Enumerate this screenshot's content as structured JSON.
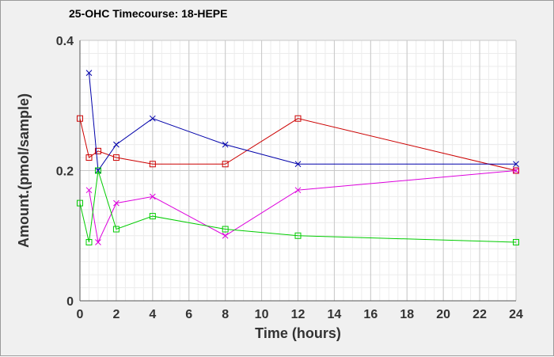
{
  "chart_data": {
    "type": "line",
    "title": "25-OHC Timecourse: 18-HEPE",
    "xlabel": "Time (hours)",
    "ylabel": "Amount.(pmol/sample)",
    "xlim": [
      0,
      24
    ],
    "ylim": [
      0,
      0.4
    ],
    "x_ticks": [
      "0",
      "2",
      "4",
      "6",
      "8",
      "10",
      "12",
      "14",
      "16",
      "18",
      "20",
      "22",
      "24"
    ],
    "y_ticks": [
      "0",
      "0.2",
      "0.4"
    ],
    "grid": true,
    "legend": "none",
    "series": [
      {
        "color": "#cc0000",
        "marker": "square",
        "points": [
          [
            0,
            0.28
          ],
          [
            0.5,
            0.22
          ],
          [
            1,
            0.23
          ],
          [
            2,
            0.22
          ],
          [
            4,
            0.21
          ],
          [
            8,
            0.21
          ],
          [
            12,
            0.28
          ],
          [
            24,
            0.2
          ]
        ]
      },
      {
        "color": "#0000aa",
        "marker": "x",
        "points": [
          [
            0.5,
            0.35
          ],
          [
            1,
            0.2
          ],
          [
            2,
            0.24
          ],
          [
            4,
            0.28
          ],
          [
            8,
            0.24
          ],
          [
            12,
            0.21
          ],
          [
            24,
            0.21
          ]
        ]
      },
      {
        "color": "#dd00dd",
        "marker": "x",
        "points": [
          [
            0.5,
            0.17
          ],
          [
            1,
            0.09
          ],
          [
            2,
            0.15
          ],
          [
            4,
            0.16
          ],
          [
            8,
            0.1
          ],
          [
            12,
            0.17
          ],
          [
            24,
            0.2
          ]
        ]
      },
      {
        "color": "#00cc00",
        "marker": "square",
        "points": [
          [
            0,
            0.15
          ],
          [
            0.5,
            0.09
          ],
          [
            1,
            0.2
          ],
          [
            2,
            0.11
          ],
          [
            4,
            0.13
          ],
          [
            8,
            0.11
          ],
          [
            12,
            0.1
          ],
          [
            24,
            0.09
          ]
        ]
      }
    ]
  }
}
